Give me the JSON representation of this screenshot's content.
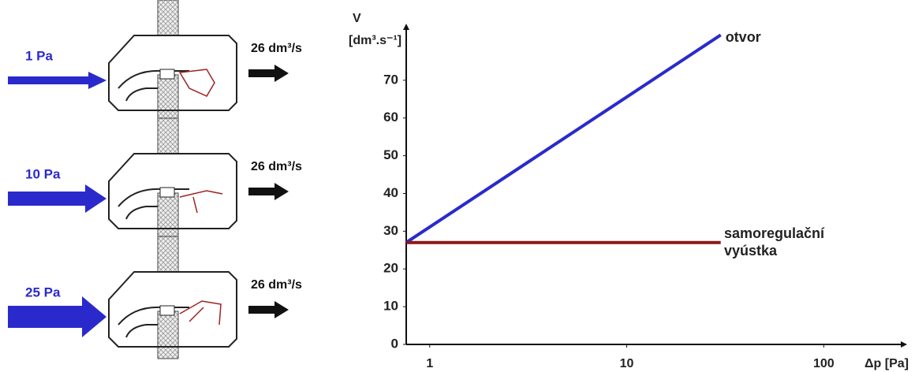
{
  "panels": [
    {
      "pressure": "1 Pa",
      "flow": "26 dm³/s"
    },
    {
      "pressure": "10 Pa",
      "flow": "26 dm³/s"
    },
    {
      "pressure": "25 Pa",
      "flow": "26 dm³/s"
    }
  ],
  "chart_data": {
    "type": "line",
    "y_label": "V",
    "y_unit": "[dm³.s⁻¹]",
    "x_label": "Δp [Pa]",
    "x_scale": "log",
    "xlim": [
      0.76,
      265
    ],
    "xticks": [
      1,
      10,
      100
    ],
    "ylim": [
      0,
      85
    ],
    "yticks": [
      0,
      10,
      20,
      30,
      40,
      50,
      60,
      70
    ],
    "grid": false,
    "series": [
      {
        "name": "otvor",
        "color": "#2a2acc",
        "x": [
          0.76,
          30
        ],
        "values": [
          27,
          82
        ]
      },
      {
        "name": "samoregulační vyústka",
        "color": "#8b1a1a",
        "x": [
          0.76,
          30
        ],
        "values": [
          27,
          27
        ]
      }
    ]
  }
}
